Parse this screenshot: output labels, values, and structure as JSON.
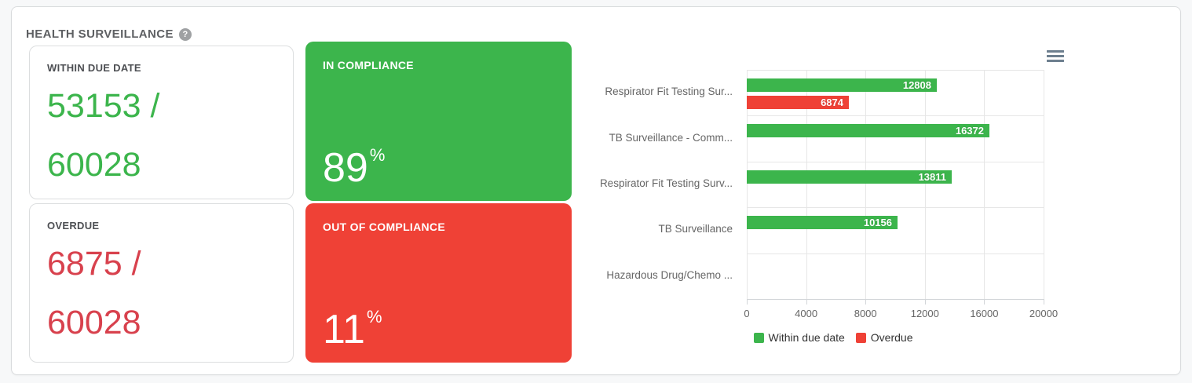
{
  "page": {
    "title": "HEALTH SURVEILLANCE",
    "help_glyph": "?"
  },
  "colors": {
    "green": "#3cb54c",
    "red_card": "#ef4136",
    "red_number": "#d8414d",
    "grid": "#e6e6e6"
  },
  "stats": {
    "within": {
      "label": "WITHIN DUE DATE",
      "value": "53153",
      "separator": "/",
      "total": "60028"
    },
    "overdue": {
      "label": "OVERDUE",
      "value": "6875",
      "separator": "/",
      "total": "60028"
    }
  },
  "compliance": {
    "in_card": {
      "label": "IN COMPLIANCE",
      "percent": "89",
      "unit": "%"
    },
    "out_card": {
      "label": "OUT OF COMPLIANCE",
      "percent": "11",
      "unit": "%"
    }
  },
  "chart_data": {
    "type": "bar",
    "orientation": "horizontal",
    "categories": [
      "Respirator Fit Testing Sur...",
      "TB Surveillance - Comm...",
      "Respirator Fit Testing Surv...",
      "TB Surveillance",
      "Hazardous Drug/Chemo ..."
    ],
    "series": [
      {
        "name": "Within due date",
        "color": "#3cb54c",
        "values": [
          12808,
          16372,
          13811,
          10156,
          null
        ]
      },
      {
        "name": "Overdue",
        "color": "#ef4136",
        "values": [
          6874,
          null,
          null,
          null,
          null
        ]
      }
    ],
    "xlim": [
      0,
      20000
    ],
    "xticks": [
      0,
      4000,
      8000,
      12000,
      16000,
      20000
    ],
    "grid": true,
    "legend_position": "bottom"
  }
}
